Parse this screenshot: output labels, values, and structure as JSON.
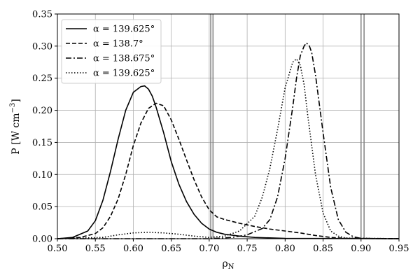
{
  "chart_data": {
    "type": "line",
    "xlabel": "ρ",
    "xlabel_sub": "N",
    "ylabel": "P [W cm",
    "ylabel_sup": "−3",
    "ylabel_end": "]",
    "xlim": [
      0.5,
      0.95
    ],
    "ylim": [
      0,
      0.35
    ],
    "xticks": [
      "0.50",
      "0.55",
      "0.60",
      "0.65",
      "0.70",
      "0.75",
      "0.80",
      "0.85",
      "0.90",
      "0.95"
    ],
    "yticks": [
      "0.00",
      "0.05",
      "0.10",
      "0.15",
      "0.20",
      "0.25",
      "0.30",
      "0.35"
    ],
    "grid": true,
    "legend_position": "top-left",
    "vertical_lines": [
      0.702,
      0.705,
      0.9,
      0.904
    ],
    "series": [
      {
        "name": "α = 139.625°",
        "style": "solid",
        "x": [
          0.5,
          0.52,
          0.54,
          0.55,
          0.56,
          0.57,
          0.58,
          0.59,
          0.6,
          0.61,
          0.615,
          0.62,
          0.625,
          0.63,
          0.64,
          0.65,
          0.66,
          0.67,
          0.68,
          0.69,
          0.7,
          0.71,
          0.72,
          0.74,
          0.76,
          0.8,
          0.95
        ],
        "y": [
          0.0,
          0.002,
          0.012,
          0.028,
          0.06,
          0.105,
          0.155,
          0.2,
          0.228,
          0.237,
          0.238,
          0.233,
          0.222,
          0.205,
          0.165,
          0.12,
          0.085,
          0.058,
          0.038,
          0.024,
          0.015,
          0.01,
          0.007,
          0.004,
          0.002,
          0.0005,
          0.0
        ]
      },
      {
        "name": "α = 138.7°",
        "style": "dashed",
        "x": [
          0.5,
          0.53,
          0.55,
          0.56,
          0.57,
          0.58,
          0.59,
          0.6,
          0.61,
          0.62,
          0.63,
          0.64,
          0.65,
          0.66,
          0.67,
          0.68,
          0.69,
          0.7,
          0.71,
          0.72,
          0.74,
          0.76,
          0.78,
          0.8,
          0.82,
          0.84,
          0.86,
          0.88,
          0.95
        ],
        "y": [
          0.0,
          0.002,
          0.008,
          0.017,
          0.035,
          0.062,
          0.1,
          0.145,
          0.18,
          0.203,
          0.211,
          0.207,
          0.185,
          0.155,
          0.123,
          0.092,
          0.065,
          0.045,
          0.034,
          0.03,
          0.024,
          0.019,
          0.015,
          0.012,
          0.009,
          0.005,
          0.002,
          0.0005,
          0.0
        ]
      },
      {
        "name": "α = 138.675°",
        "style": "dashdot",
        "x": [
          0.5,
          0.7,
          0.73,
          0.75,
          0.77,
          0.78,
          0.79,
          0.8,
          0.81,
          0.815,
          0.82,
          0.825,
          0.828,
          0.832,
          0.835,
          0.84,
          0.85,
          0.86,
          0.87,
          0.88,
          0.89,
          0.9,
          0.95
        ],
        "y": [
          0.0,
          0.0,
          0.002,
          0.006,
          0.016,
          0.03,
          0.065,
          0.125,
          0.205,
          0.25,
          0.285,
          0.3,
          0.305,
          0.3,
          0.29,
          0.255,
          0.165,
          0.08,
          0.03,
          0.01,
          0.003,
          0.0005,
          0.0
        ]
      },
      {
        "name": "α = 139.625°",
        "style": "dotted",
        "x": [
          0.5,
          0.56,
          0.58,
          0.6,
          0.62,
          0.64,
          0.66,
          0.68,
          0.7,
          0.72,
          0.74,
          0.76,
          0.77,
          0.78,
          0.79,
          0.8,
          0.81,
          0.815,
          0.82,
          0.825,
          0.83,
          0.84,
          0.85,
          0.86,
          0.87,
          0.88,
          0.95
        ],
        "y": [
          0.0,
          0.002,
          0.006,
          0.009,
          0.01,
          0.009,
          0.007,
          0.004,
          0.002,
          0.004,
          0.012,
          0.035,
          0.065,
          0.11,
          0.17,
          0.235,
          0.275,
          0.28,
          0.27,
          0.24,
          0.19,
          0.1,
          0.04,
          0.012,
          0.004,
          0.001,
          0.0
        ]
      }
    ]
  }
}
